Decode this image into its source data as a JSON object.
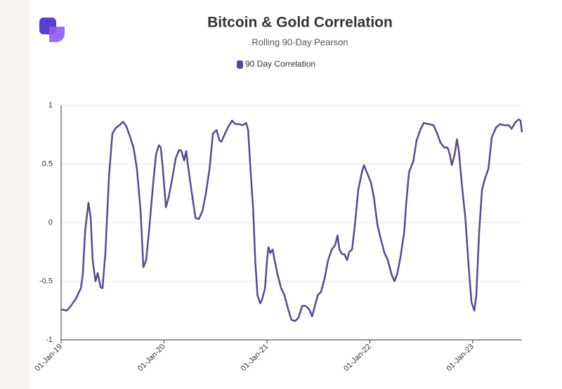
{
  "chart_data": {
    "type": "line",
    "title": "Bitcoin & Gold Correlation",
    "subtitle": "Rolling 90-Day Pearson",
    "x": [
      "2019-01-01",
      "2019-01-21",
      "2019-02-02",
      "2019-02-22",
      "2019-03-12",
      "2019-03-19",
      "2019-03-27",
      "2019-04-08",
      "2019-04-16",
      "2019-04-23",
      "2019-05-03",
      "2019-05-11",
      "2019-05-21",
      "2019-05-28",
      "2019-06-07",
      "2019-06-20",
      "2019-07-02",
      "2019-07-15",
      "2019-07-27",
      "2019-08-09",
      "2019-08-21",
      "2019-09-03",
      "2019-09-15",
      "2019-09-27",
      "2019-10-10",
      "2019-10-20",
      "2019-10-30",
      "2019-11-11",
      "2019-11-24",
      "2019-12-04",
      "2019-12-14",
      "2019-12-21",
      "2019-12-28",
      "2020-01-08",
      "2020-01-18",
      "2020-01-30",
      "2020-02-12",
      "2020-02-24",
      "2020-03-03",
      "2020-03-13",
      "2020-03-20",
      "2020-03-28",
      "2020-04-09",
      "2020-04-22",
      "2020-05-04",
      "2020-05-17",
      "2020-05-29",
      "2020-06-11",
      "2020-06-23",
      "2020-07-06",
      "2020-07-16",
      "2020-07-23",
      "2020-08-05",
      "2020-08-17",
      "2020-08-30",
      "2020-09-11",
      "2020-09-24",
      "2020-10-06",
      "2020-10-19",
      "2020-10-26",
      "2020-11-03",
      "2020-11-13",
      "2020-11-20",
      "2020-11-28",
      "2020-12-08",
      "2020-12-15",
      "2020-12-25",
      "2021-01-01",
      "2021-01-06",
      "2021-01-13",
      "2021-01-21",
      "2021-01-28",
      "2021-02-07",
      "2021-02-20",
      "2021-03-04",
      "2021-03-17",
      "2021-03-29",
      "2021-04-11",
      "2021-04-23",
      "2021-05-06",
      "2021-05-18",
      "2021-05-31",
      "2021-06-10",
      "2021-06-20",
      "2021-06-30",
      "2021-07-12",
      "2021-07-25",
      "2021-08-06",
      "2021-08-19",
      "2021-08-31",
      "2021-09-08",
      "2021-09-15",
      "2021-09-25",
      "2021-10-03",
      "2021-10-12",
      "2021-10-20",
      "2021-10-30",
      "2021-11-09",
      "2021-11-21",
      "2021-12-04",
      "2021-12-11",
      "2021-12-21",
      "2022-01-05",
      "2022-01-15",
      "2022-01-28",
      "2022-02-09",
      "2022-02-22",
      "2022-03-06",
      "2022-03-19",
      "2022-03-29",
      "2022-04-08",
      "2022-04-20",
      "2022-05-03",
      "2022-05-10",
      "2022-05-20",
      "2022-06-04",
      "2022-06-16",
      "2022-06-29",
      "2022-07-11",
      "2022-07-29",
      "2022-08-15",
      "2022-08-28",
      "2022-09-09",
      "2022-09-22",
      "2022-10-04",
      "2022-10-12",
      "2022-10-19",
      "2022-10-29",
      "2022-11-06",
      "2022-11-13",
      "2022-11-23",
      "2022-12-06",
      "2022-12-18",
      "2022-12-28",
      "2023-01-07",
      "2023-01-14",
      "2023-01-24",
      "2023-02-03",
      "2023-02-13",
      "2023-02-26",
      "2023-03-10",
      "2023-03-25",
      "2023-04-09",
      "2023-04-24",
      "2023-05-09",
      "2023-05-19",
      "2023-05-31",
      "2023-06-13",
      "2023-06-20",
      "2023-06-25"
    ],
    "series": [
      {
        "name": "90 Day Correlation",
        "color": "#5b4790",
        "values": [
          -0.74,
          -0.75,
          -0.72,
          -0.65,
          -0.56,
          -0.44,
          -0.08,
          0.17,
          0.04,
          -0.32,
          -0.5,
          -0.43,
          -0.55,
          -0.56,
          -0.26,
          0.4,
          0.76,
          0.81,
          0.83,
          0.86,
          0.82,
          0.73,
          0.64,
          0.46,
          0.1,
          -0.38,
          -0.32,
          -0.02,
          0.34,
          0.58,
          0.66,
          0.64,
          0.46,
          0.13,
          0.22,
          0.37,
          0.55,
          0.62,
          0.61,
          0.53,
          0.61,
          0.46,
          0.25,
          0.04,
          0.03,
          0.1,
          0.25,
          0.46,
          0.76,
          0.79,
          0.7,
          0.69,
          0.76,
          0.82,
          0.87,
          0.84,
          0.84,
          0.83,
          0.85,
          0.79,
          0.46,
          0.1,
          -0.32,
          -0.62,
          -0.69,
          -0.65,
          -0.56,
          -0.32,
          -0.21,
          -0.26,
          -0.23,
          -0.32,
          -0.44,
          -0.56,
          -0.62,
          -0.74,
          -0.83,
          -0.84,
          -0.81,
          -0.71,
          -0.71,
          -0.74,
          -0.8,
          -0.71,
          -0.62,
          -0.59,
          -0.47,
          -0.32,
          -0.23,
          -0.19,
          -0.11,
          -0.23,
          -0.27,
          -0.27,
          -0.32,
          -0.25,
          -0.23,
          -0.02,
          0.28,
          0.43,
          0.49,
          0.43,
          0.34,
          0.22,
          -0.02,
          -0.14,
          -0.26,
          -0.32,
          -0.44,
          -0.5,
          -0.44,
          -0.29,
          -0.08,
          0.16,
          0.43,
          0.52,
          0.7,
          0.79,
          0.85,
          0.84,
          0.83,
          0.76,
          0.68,
          0.64,
          0.64,
          0.58,
          0.49,
          0.58,
          0.71,
          0.61,
          0.34,
          0.04,
          -0.38,
          -0.68,
          -0.75,
          -0.62,
          -0.08,
          0.28,
          0.37,
          0.46,
          0.73,
          0.81,
          0.84,
          0.83,
          0.83,
          0.8,
          0.85,
          0.88,
          0.87,
          0.77
        ]
      }
    ],
    "xlim": [
      "2019-01-01",
      "2023-06-25"
    ],
    "xticks": [
      {
        "value": "2019-01-01",
        "label": "01-Jan-19"
      },
      {
        "value": "2020-01-01",
        "label": "01-Jan-20"
      },
      {
        "value": "2021-01-01",
        "label": "01-Jan-21"
      },
      {
        "value": "2022-01-01",
        "label": "01-Jan-22"
      },
      {
        "value": "2023-01-01",
        "label": "01-Jan-23"
      }
    ],
    "ylim": [
      -1,
      1
    ],
    "yticks": [
      -1,
      -0.5,
      0,
      0.5,
      1
    ],
    "grid": true,
    "legend": "top"
  }
}
